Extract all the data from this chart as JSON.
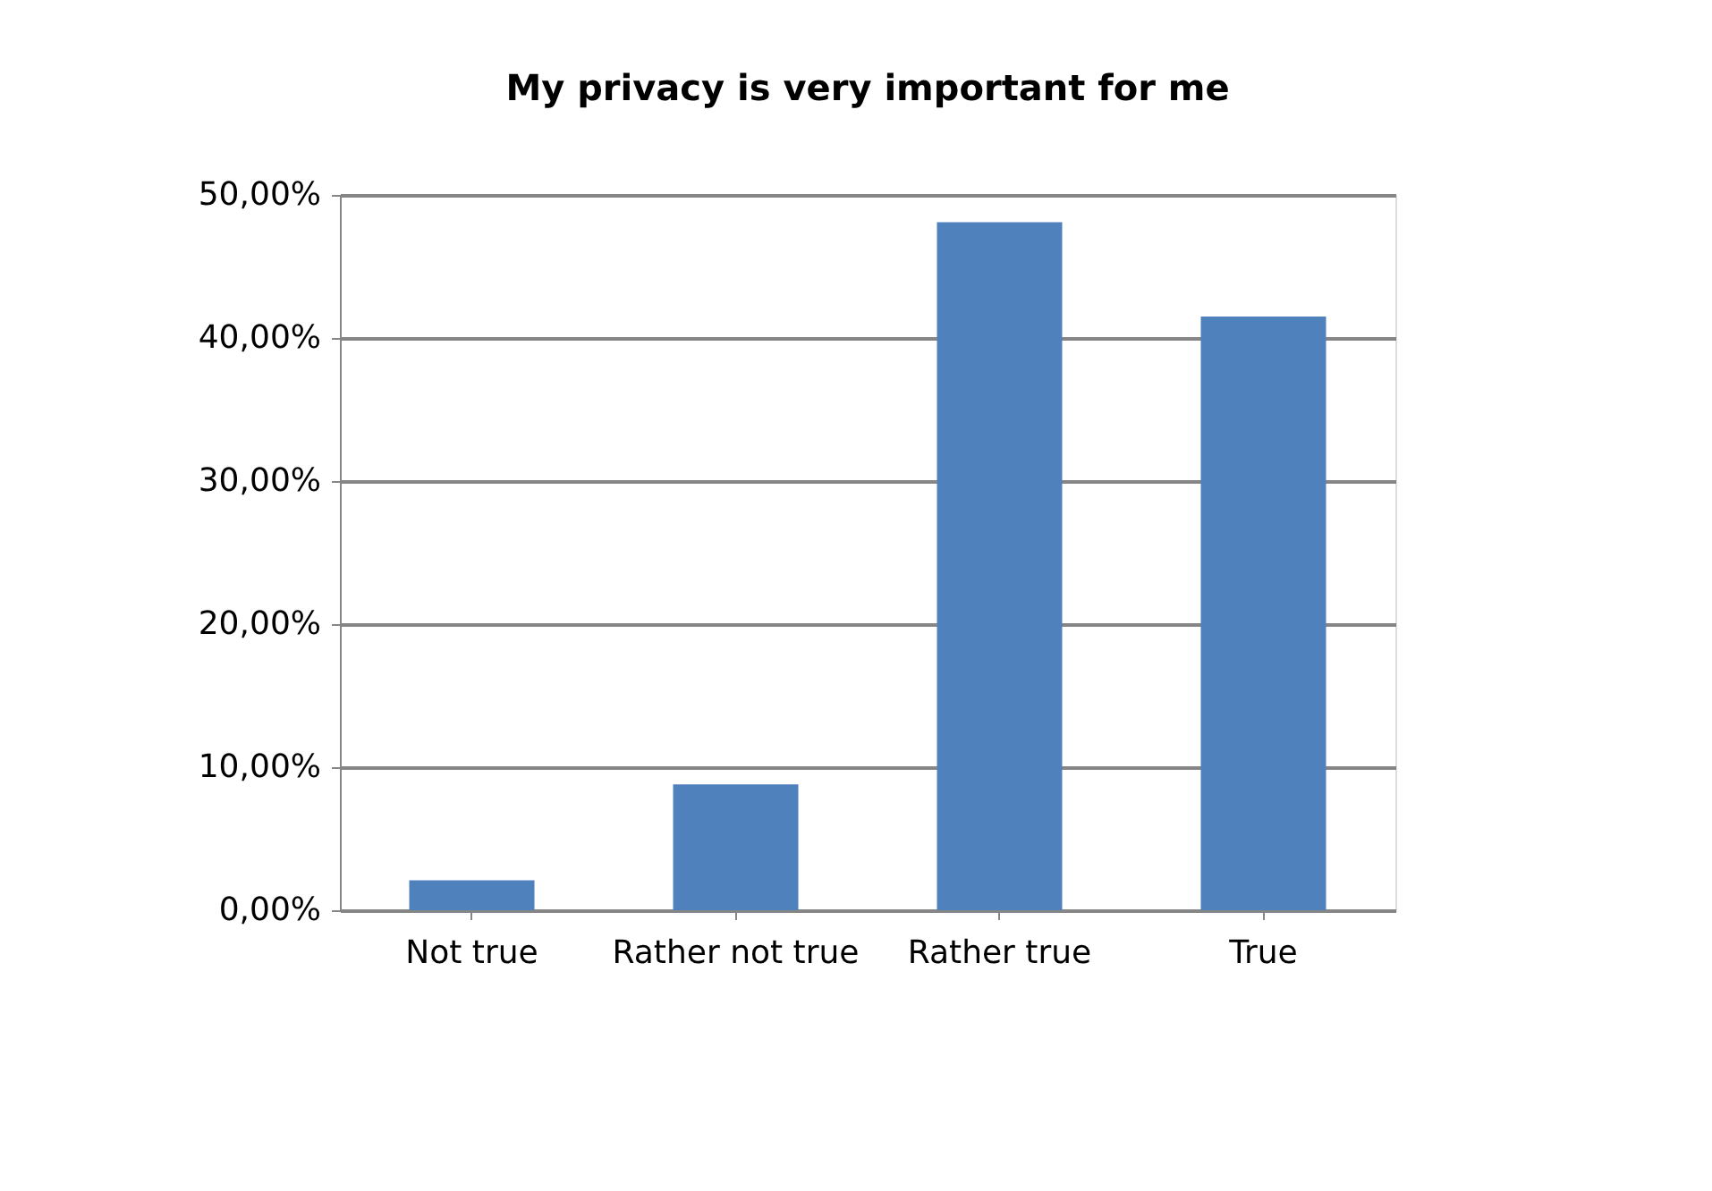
{
  "chart_data": {
    "type": "bar",
    "title": "My privacy is very important for me",
    "categories": [
      "Not true",
      "Rather not true",
      "Rather true",
      "True"
    ],
    "values": [
      2.1,
      8.8,
      48.1,
      41.5
    ],
    "color": "#4f81bd",
    "ylim": [
      0,
      50
    ],
    "yticks": [
      {
        "value": 0,
        "label": "0,00%"
      },
      {
        "value": 10,
        "label": "10,00%"
      },
      {
        "value": 20,
        "label": "20,00%"
      },
      {
        "value": 30,
        "label": "30,00%"
      },
      {
        "value": 40,
        "label": "40,00%"
      },
      {
        "value": 50,
        "label": "50,00%"
      }
    ],
    "grid": "y"
  }
}
